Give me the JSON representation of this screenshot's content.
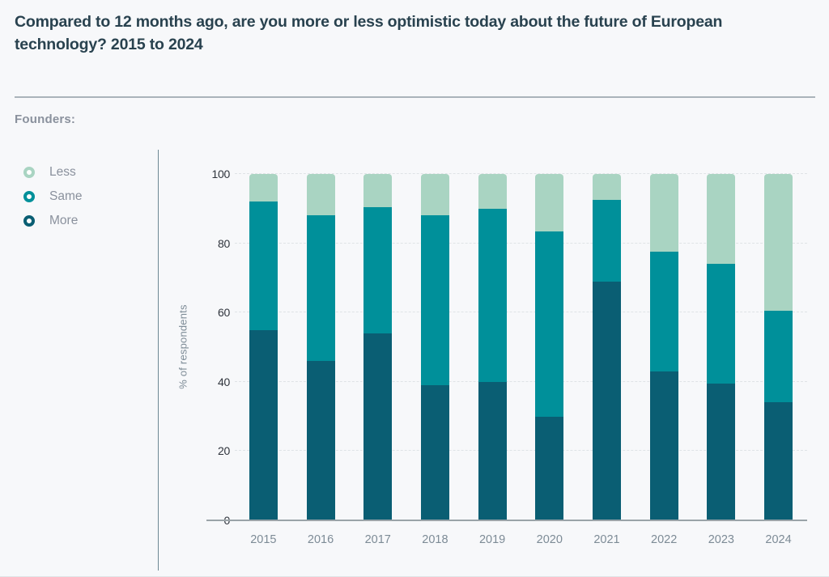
{
  "title": "Compared to 12 months ago, are you more or less optimistic today about the future of European technology? 2015 to 2024",
  "audience_label": "Founders:",
  "legend": {
    "items": [
      {
        "label": "Less",
        "color": "#a9d4c2"
      },
      {
        "label": "Same",
        "color": "#00909a"
      },
      {
        "label": "More",
        "color": "#0a5e73"
      }
    ]
  },
  "colors": {
    "background": "#f7f8fa",
    "title_text": "#29424f",
    "muted_text": "#8a919d",
    "axis_text": "#7d8b96",
    "tick_text": "#2f343c",
    "less": "#a9d4c2",
    "same": "#00909a",
    "more": "#0a5e73"
  },
  "chart_data": {
    "type": "bar",
    "stacked": true,
    "title": "Compared to 12 months ago, are you more or less optimistic today about the future of European technology? 2015 to 2024",
    "categories": [
      "2015",
      "2016",
      "2017",
      "2018",
      "2019",
      "2020",
      "2021",
      "2022",
      "2023",
      "2024"
    ],
    "series": [
      {
        "name": "More",
        "color": "#0a5e73",
        "values": [
          55,
          46,
          54,
          39,
          40,
          30,
          69,
          43,
          39.5,
          34
        ]
      },
      {
        "name": "Same",
        "color": "#00909a",
        "values": [
          37,
          42,
          36.5,
          49,
          50,
          53.5,
          23.5,
          34.5,
          34.5,
          26.5
        ]
      },
      {
        "name": "Less",
        "color": "#a9d4c2",
        "values": [
          8,
          12,
          9.5,
          12,
          10,
          16.5,
          7.5,
          22.5,
          26,
          39.5
        ]
      }
    ],
    "xlabel": "",
    "ylabel": "% of respondents",
    "ylim": [
      0,
      100
    ],
    "yticks": [
      0,
      20,
      40,
      60,
      80,
      100
    ],
    "grid": true,
    "legend_position": "left"
  }
}
